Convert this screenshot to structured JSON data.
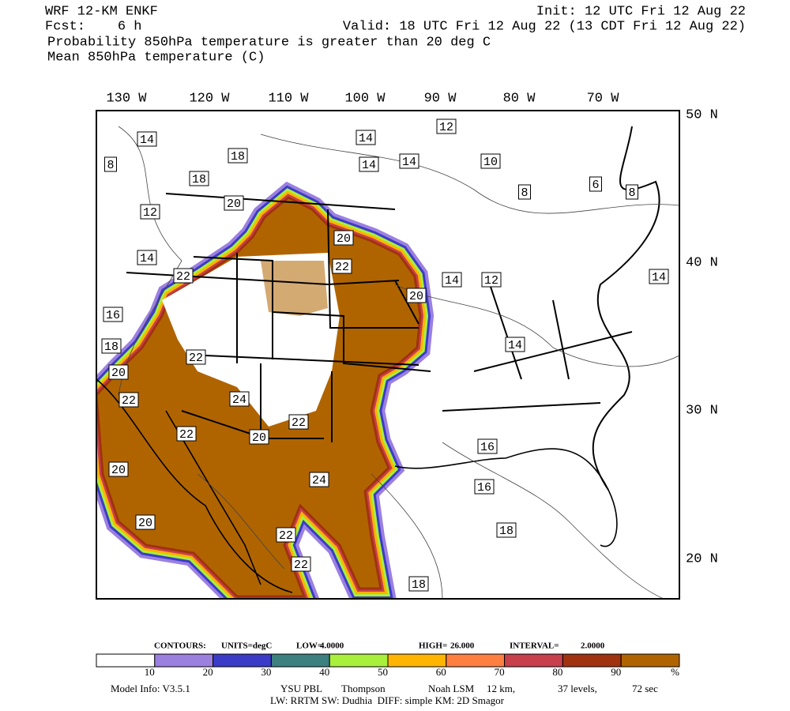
{
  "header": {
    "model": "WRF 12-KM ENKF",
    "init": "Init: 12 UTC Fri 12 Aug 22",
    "fcst": "Fcst:    6 h",
    "valid": "Valid: 18 UTC Fri 12 Aug 22 (13 CDT Fri 12 Aug 22)",
    "field1": "Probability 850hPa temperature is greater than 20 deg C",
    "field2": "Mean 850hPa temperature (C)"
  },
  "lon_labels": [
    "130 W",
    "120 W",
    "110 W",
    "100 W",
    "90 W",
    "80 W",
    "70 W"
  ],
  "lat_labels": [
    "50 N",
    "40 N",
    "30 N",
    "20 N"
  ],
  "contour_labels": [
    "12",
    "14",
    "14",
    "18",
    "8",
    "14",
    "14",
    "10",
    "18",
    "8",
    "6",
    "8",
    "20",
    "12",
    "20",
    "14",
    "22",
    "22",
    "14",
    "12",
    "14",
    "20",
    "16",
    "18",
    "14",
    "22",
    "20",
    "22",
    "24",
    "22",
    "22",
    "20",
    "16",
    "20",
    "24",
    "16",
    "20",
    "18",
    "22",
    "22",
    "18"
  ],
  "contour_info": [
    "CONTOURS:",
    "UNITS=degC",
    "LOW=",
    "4.0000",
    "HIGH=",
    "26.000",
    "INTERVAL=",
    "2.0000"
  ],
  "colorbar": {
    "colors": [
      "#ffffff",
      "#9b80e0",
      "#3b3bc8",
      "#3c8080",
      "#a8f03c",
      "#ffb400",
      "#ff7f40",
      "#c8404c",
      "#a03210",
      "#b06400"
    ],
    "labels": [
      "10",
      "20",
      "30",
      "40",
      "50",
      "60",
      "70",
      "80",
      "90"
    ],
    "unit": "%"
  },
  "model_info": [
    "Model Info: V3.5.1",
    "YSU PBL",
    "Thompson",
    "Noah LSM",
    "12 km,",
    "37 levels,",
    "72 sec",
    "LW: RRTM SW: Dudhia  DIFF: simple KM: 2D Smagor"
  ]
}
